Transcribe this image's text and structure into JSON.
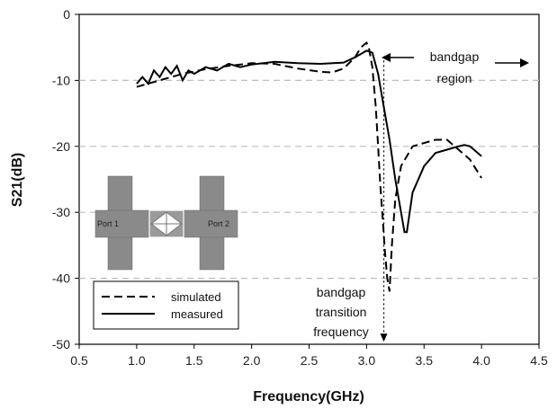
{
  "chart_data": {
    "type": "line",
    "xlabel": "Frequency(GHz)",
    "ylabel": "S21(dB)",
    "xlim": [
      0.5,
      4.5
    ],
    "ylim": [
      -50,
      0
    ],
    "xticks": [
      0.5,
      1.0,
      1.5,
      2.0,
      2.5,
      3.0,
      3.5,
      4.0,
      4.5
    ],
    "yticks": [
      0,
      -10,
      -20,
      -30,
      -40,
      -50
    ],
    "grid": "horizontal dashed",
    "legend_position": "bottom-left",
    "series": [
      {
        "name": "simulated",
        "style": "dashed",
        "color": "#000000",
        "x": [
          1.0,
          1.2,
          1.4,
          1.6,
          1.8,
          2.0,
          2.2,
          2.4,
          2.6,
          2.7,
          2.8,
          2.9,
          2.95,
          3.0,
          3.02,
          3.05,
          3.08,
          3.1,
          3.12,
          3.14,
          3.16,
          3.18,
          3.2,
          3.22,
          3.25,
          3.3,
          3.4,
          3.5,
          3.6,
          3.7,
          3.8,
          3.9,
          4.0
        ],
        "y": [
          -11.0,
          -10.0,
          -9.0,
          -8.3,
          -7.8,
          -7.4,
          -7.5,
          -8.2,
          -8.7,
          -8.8,
          -8.2,
          -6.5,
          -5.0,
          -4.3,
          -5.0,
          -8.0,
          -14.0,
          -20.0,
          -26.0,
          -31.0,
          -36.0,
          -40.0,
          -42.0,
          -35.0,
          -28.0,
          -23.0,
          -20.0,
          -19.5,
          -19.0,
          -19.0,
          -20.5,
          -22.0,
          -24.8
        ]
      },
      {
        "name": "measured",
        "style": "solid",
        "color": "#000000",
        "x": [
          1.0,
          1.05,
          1.1,
          1.15,
          1.2,
          1.25,
          1.3,
          1.35,
          1.4,
          1.45,
          1.5,
          1.6,
          1.7,
          1.8,
          1.9,
          2.0,
          2.2,
          2.4,
          2.6,
          2.8,
          2.9,
          3.0,
          3.05,
          3.1,
          3.15,
          3.2,
          3.25,
          3.3,
          3.33,
          3.35,
          3.4,
          3.5,
          3.6,
          3.7,
          3.8,
          3.85,
          3.9,
          4.0
        ],
        "y": [
          -10.5,
          -9.5,
          -10.5,
          -8.5,
          -9.5,
          -8.0,
          -9.0,
          -7.8,
          -10.0,
          -8.5,
          -9.0,
          -8.0,
          -8.5,
          -7.5,
          -8.0,
          -7.6,
          -7.2,
          -7.4,
          -7.5,
          -7.3,
          -6.5,
          -5.5,
          -5.8,
          -9.0,
          -14.0,
          -19.0,
          -25.0,
          -30.0,
          -33.0,
          -33.0,
          -27.0,
          -23.0,
          -21.0,
          -20.5,
          -20.0,
          -19.8,
          -20.0,
          -21.5
        ]
      }
    ],
    "annotations": {
      "bandgap_region": [
        "bandgap",
        "region"
      ],
      "transition": [
        "bandgap",
        "transition",
        "frequency"
      ],
      "transition_x": 3.15
    },
    "inset": {
      "port1": "Port 1",
      "port2": "Port 2"
    }
  }
}
